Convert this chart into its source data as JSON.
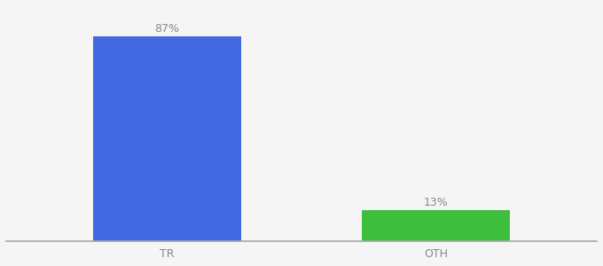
{
  "categories": [
    "TR",
    "OTH"
  ],
  "values": [
    87,
    13
  ],
  "bar_colors": [
    "#4169e1",
    "#3dbe3d"
  ],
  "value_labels": [
    "87%",
    "13%"
  ],
  "background_color": "#f5f5f5",
  "ylim": [
    0,
    100
  ],
  "bar_width": 0.55,
  "label_fontsize": 9,
  "tick_fontsize": 9,
  "label_color": "#888888"
}
